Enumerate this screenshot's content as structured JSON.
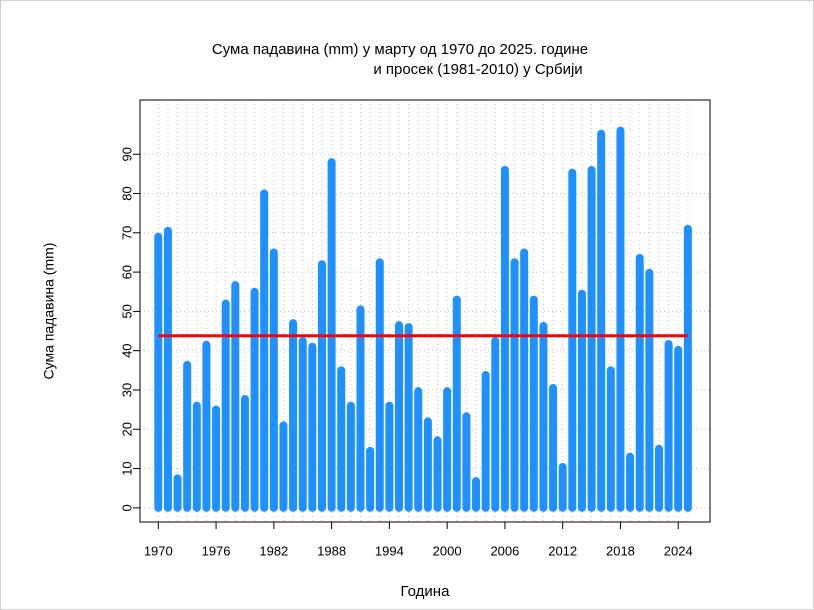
{
  "chart_data": {
    "type": "bar",
    "title": [
      "Сума падавина (mm)  у марту од 1970 до 2025. године",
      "и просек (1981-2010) у Србији"
    ],
    "xlabel": "Година",
    "ylabel": "Сума падавина (mm)",
    "x": [
      1970,
      1971,
      1972,
      1973,
      1974,
      1975,
      1976,
      1977,
      1978,
      1979,
      1980,
      1981,
      1982,
      1983,
      1984,
      1985,
      1986,
      1987,
      1988,
      1989,
      1990,
      1991,
      1992,
      1993,
      1994,
      1995,
      1996,
      1997,
      1998,
      1999,
      2000,
      2001,
      2002,
      2003,
      2004,
      2005,
      2006,
      2007,
      2008,
      2009,
      2010,
      2011,
      2012,
      2013,
      2014,
      2015,
      2016,
      2017,
      2018,
      2019,
      2020,
      2021,
      2022,
      2023,
      2024,
      2025
    ],
    "values": [
      69,
      70.5,
      7.5,
      36.4,
      26,
      41.5,
      25,
      52,
      56.7,
      27.7,
      55,
      80,
      65,
      21,
      47,
      42.5,
      41,
      62,
      88,
      35,
      26,
      50.5,
      14.5,
      62.5,
      26,
      46.5,
      46,
      29.7,
      22,
      17.2,
      29.7,
      53,
      23.3,
      6.8,
      33.8,
      42.5,
      86,
      62.5,
      65,
      53,
      46.3,
      30.5,
      10.4,
      85.3,
      54.5,
      86,
      95.2,
      35,
      96,
      13,
      63.6,
      59.8,
      15,
      41.7,
      40.2,
      71
    ],
    "color": "#1e90ff",
    "average": {
      "value": 43.8,
      "color": "#ff0000"
    },
    "xlim": [
      1968.1,
      2027.3
    ],
    "xticks": [
      1970,
      1976,
      1982,
      1988,
      1994,
      2000,
      2006,
      2012,
      2018,
      2024
    ],
    "ylim": [
      -3.6,
      103.8
    ],
    "yticks": [
      0,
      10,
      20,
      30,
      40,
      50,
      60,
      70,
      80,
      90
    ],
    "grid": true
  }
}
